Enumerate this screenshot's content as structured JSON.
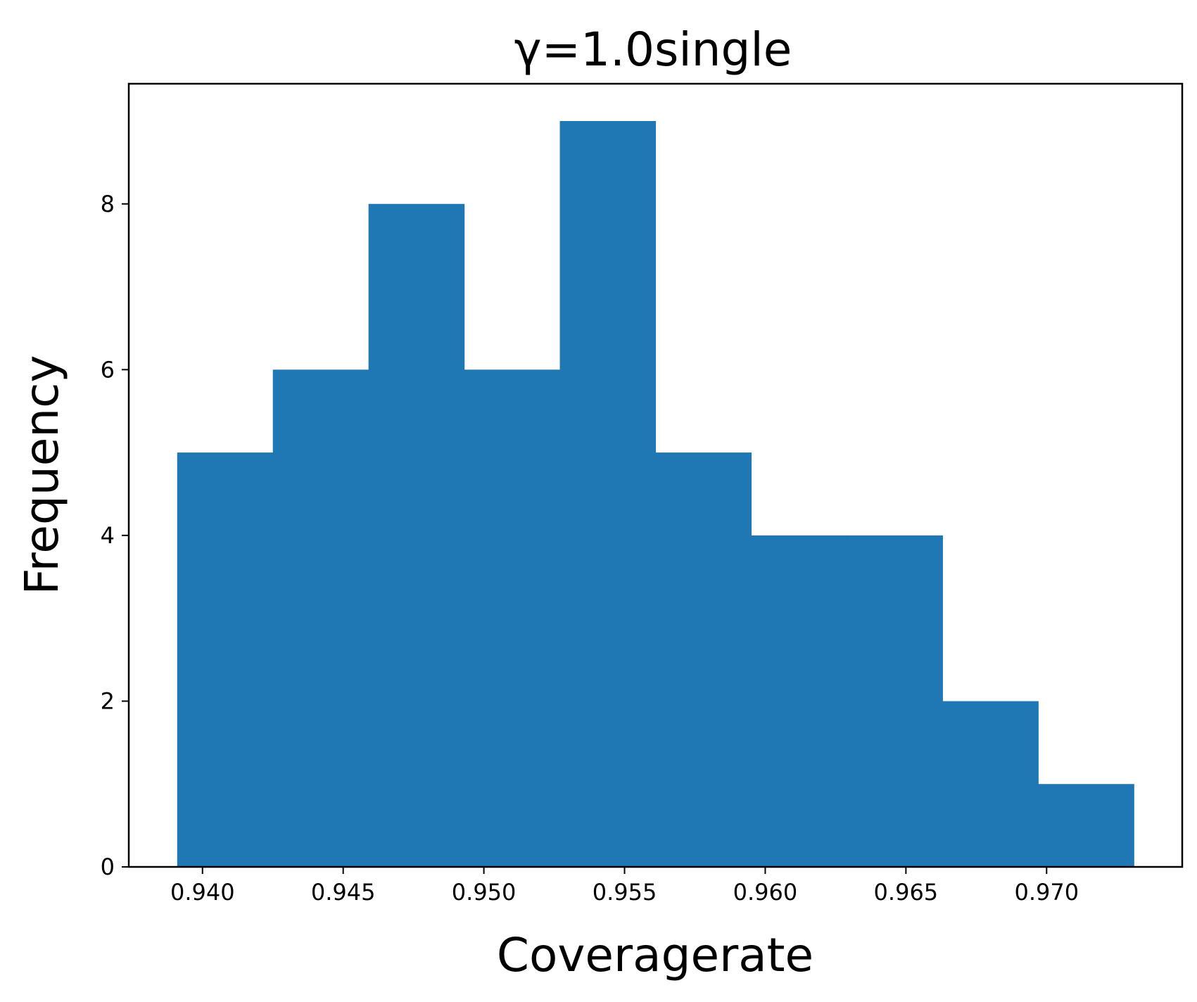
{
  "chart_data": {
    "type": "bar",
    "title": "γ=1.0single",
    "xlabel": "Coveragerate",
    "ylabel": "Frequency",
    "bin_edges": [
      0.9391,
      0.9425,
      0.9459,
      0.9493,
      0.9527,
      0.9561,
      0.9595,
      0.9629,
      0.9663,
      0.9697,
      0.9731
    ],
    "values": [
      5,
      6,
      8,
      6,
      9,
      5,
      4,
      4,
      2,
      1
    ],
    "xlim": [
      0.93738,
      0.97482
    ],
    "ylim": [
      0,
      9.45
    ],
    "xticks": [
      0.94,
      0.945,
      0.95,
      0.955,
      0.96,
      0.965,
      0.97
    ],
    "xtick_labels": [
      "0.940",
      "0.945",
      "0.950",
      "0.955",
      "0.960",
      "0.965",
      "0.970"
    ],
    "yticks": [
      0,
      2,
      4,
      6,
      8
    ],
    "ytick_labels": [
      "0",
      "2",
      "4",
      "6",
      "8"
    ],
    "bar_color": "#1f77b4",
    "grid": false,
    "legend": "none"
  }
}
